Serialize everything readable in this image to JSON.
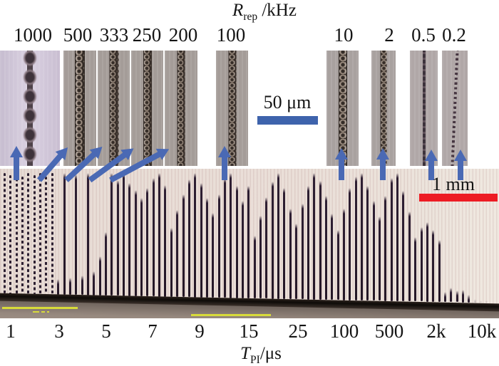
{
  "figure": {
    "top_axis": {
      "title": {
        "symbol": "R",
        "subscript": "rep",
        "unit": " /kHz"
      },
      "values": [
        "1000",
        "500",
        "333",
        "250",
        "200",
        "100",
        "10",
        "2",
        "0.5",
        "0.2"
      ]
    },
    "bottom_axis": {
      "title": {
        "symbol": "T",
        "subscript": "PI",
        "unit": "/μs"
      },
      "values": [
        "1",
        "3",
        "5",
        "7",
        "9",
        "15",
        "25",
        "100",
        "500",
        "2k",
        "10k"
      ]
    },
    "scale_bars": [
      {
        "id": "micro",
        "label": "50 μm",
        "color": "#3e63ac"
      },
      {
        "id": "macro",
        "label": "1 mm",
        "color": "#ed1c24"
      }
    ],
    "annotation_colors": {
      "arrow_blue": "#4a69b4",
      "marker_yellow": "#d8db3a"
    }
  }
}
